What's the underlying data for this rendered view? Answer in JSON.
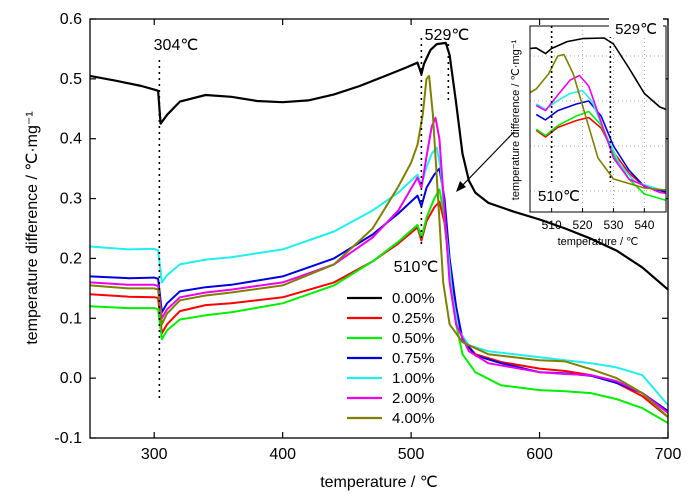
{
  "chart_data": {
    "type": "line",
    "xlabel": "temperature / ℃",
    "ylabel": "temperature difference / ℃·mg⁻¹",
    "xlim": [
      250,
      700
    ],
    "ylim": [
      -0.1,
      0.6
    ],
    "xticks": [
      "300",
      "400",
      "500",
      "600",
      "700"
    ],
    "yticks": [
      "-0.1",
      "0.0",
      "0.1",
      "0.2",
      "0.3",
      "0.4",
      "0.5",
      "0.6"
    ],
    "legend_position": "center",
    "annotations": [
      {
        "text": "304℃",
        "x": 304
      },
      {
        "text": "529℃",
        "x": 529
      },
      {
        "text": "510℃",
        "x": 510
      }
    ],
    "series": [
      {
        "name": "0.00%",
        "color": "#000000",
        "points": [
          [
            250,
            0.505
          ],
          [
            270,
            0.497
          ],
          [
            290,
            0.488
          ],
          [
            300,
            0.482
          ],
          [
            303,
            0.48
          ],
          [
            305,
            0.425
          ],
          [
            310,
            0.44
          ],
          [
            320,
            0.462
          ],
          [
            340,
            0.473
          ],
          [
            360,
            0.47
          ],
          [
            380,
            0.463
          ],
          [
            400,
            0.461
          ],
          [
            420,
            0.464
          ],
          [
            440,
            0.474
          ],
          [
            460,
            0.488
          ],
          [
            480,
            0.505
          ],
          [
            495,
            0.518
          ],
          [
            505,
            0.527
          ],
          [
            508,
            0.508
          ],
          [
            510,
            0.525
          ],
          [
            515,
            0.548
          ],
          [
            520,
            0.558
          ],
          [
            527,
            0.56
          ],
          [
            530,
            0.54
          ],
          [
            535,
            0.46
          ],
          [
            540,
            0.375
          ],
          [
            545,
            0.33
          ],
          [
            550,
            0.31
          ],
          [
            560,
            0.293
          ],
          [
            580,
            0.278
          ],
          [
            600,
            0.265
          ],
          [
            620,
            0.25
          ],
          [
            640,
            0.233
          ],
          [
            660,
            0.213
          ],
          [
            680,
            0.185
          ],
          [
            700,
            0.148
          ]
        ]
      },
      {
        "name": "0.25%",
        "color": "#ff0000",
        "points": [
          [
            250,
            0.14
          ],
          [
            280,
            0.136
          ],
          [
            300,
            0.135
          ],
          [
            303,
            0.134
          ],
          [
            306,
            0.075
          ],
          [
            310,
            0.09
          ],
          [
            320,
            0.112
          ],
          [
            340,
            0.122
          ],
          [
            360,
            0.125
          ],
          [
            400,
            0.135
          ],
          [
            440,
            0.16
          ],
          [
            470,
            0.195
          ],
          [
            490,
            0.225
          ],
          [
            505,
            0.252
          ],
          [
            508,
            0.23
          ],
          [
            512,
            0.262
          ],
          [
            518,
            0.285
          ],
          [
            522,
            0.295
          ],
          [
            526,
            0.26
          ],
          [
            530,
            0.18
          ],
          [
            535,
            0.11
          ],
          [
            540,
            0.065
          ],
          [
            550,
            0.04
          ],
          [
            570,
            0.027
          ],
          [
            600,
            0.016
          ],
          [
            620,
            0.012
          ],
          [
            640,
            0.005
          ],
          [
            660,
            -0.008
          ],
          [
            680,
            -0.03
          ],
          [
            700,
            -0.065
          ]
        ]
      },
      {
        "name": "0.50%",
        "color": "#00ee00",
        "points": [
          [
            250,
            0.12
          ],
          [
            280,
            0.117
          ],
          [
            300,
            0.117
          ],
          [
            303,
            0.115
          ],
          [
            306,
            0.065
          ],
          [
            310,
            0.08
          ],
          [
            320,
            0.098
          ],
          [
            340,
            0.105
          ],
          [
            360,
            0.11
          ],
          [
            400,
            0.125
          ],
          [
            440,
            0.155
          ],
          [
            470,
            0.195
          ],
          [
            490,
            0.228
          ],
          [
            505,
            0.256
          ],
          [
            508,
            0.235
          ],
          [
            512,
            0.268
          ],
          [
            518,
            0.3
          ],
          [
            522,
            0.315
          ],
          [
            526,
            0.27
          ],
          [
            530,
            0.17
          ],
          [
            535,
            0.09
          ],
          [
            540,
            0.04
          ],
          [
            550,
            0.01
          ],
          [
            570,
            -0.012
          ],
          [
            600,
            -0.02
          ],
          [
            620,
            -0.022
          ],
          [
            640,
            -0.025
          ],
          [
            660,
            -0.035
          ],
          [
            680,
            -0.05
          ],
          [
            700,
            -0.075
          ]
        ]
      },
      {
        "name": "0.75%",
        "color": "#0000dd",
        "points": [
          [
            250,
            0.17
          ],
          [
            280,
            0.167
          ],
          [
            300,
            0.168
          ],
          [
            303,
            0.166
          ],
          [
            306,
            0.11
          ],
          [
            310,
            0.125
          ],
          [
            320,
            0.145
          ],
          [
            340,
            0.152
          ],
          [
            360,
            0.156
          ],
          [
            400,
            0.17
          ],
          [
            440,
            0.2
          ],
          [
            470,
            0.24
          ],
          [
            490,
            0.275
          ],
          [
            505,
            0.305
          ],
          [
            508,
            0.287
          ],
          [
            512,
            0.318
          ],
          [
            518,
            0.34
          ],
          [
            522,
            0.35
          ],
          [
            526,
            0.3
          ],
          [
            530,
            0.2
          ],
          [
            535,
            0.12
          ],
          [
            540,
            0.065
          ],
          [
            550,
            0.038
          ],
          [
            570,
            0.025
          ],
          [
            600,
            0.01
          ],
          [
            620,
            0.008
          ],
          [
            640,
            0.004
          ],
          [
            660,
            -0.008
          ],
          [
            680,
            -0.025
          ],
          [
            700,
            -0.055
          ]
        ]
      },
      {
        "name": "1.00%",
        "color": "#22eeee",
        "points": [
          [
            250,
            0.22
          ],
          [
            280,
            0.215
          ],
          [
            300,
            0.216
          ],
          [
            303,
            0.213
          ],
          [
            306,
            0.16
          ],
          [
            310,
            0.172
          ],
          [
            320,
            0.19
          ],
          [
            340,
            0.198
          ],
          [
            360,
            0.202
          ],
          [
            400,
            0.215
          ],
          [
            440,
            0.245
          ],
          [
            470,
            0.28
          ],
          [
            490,
            0.31
          ],
          [
            505,
            0.34
          ],
          [
            508,
            0.322
          ],
          [
            512,
            0.352
          ],
          [
            516,
            0.375
          ],
          [
            520,
            0.385
          ],
          [
            523,
            0.35
          ],
          [
            527,
            0.25
          ],
          [
            532,
            0.14
          ],
          [
            537,
            0.08
          ],
          [
            545,
            0.055
          ],
          [
            560,
            0.045
          ],
          [
            600,
            0.035
          ],
          [
            620,
            0.03
          ],
          [
            640,
            0.025
          ],
          [
            660,
            0.018
          ],
          [
            680,
            0.005
          ],
          [
            700,
            -0.045
          ]
        ]
      },
      {
        "name": "2.00%",
        "color": "#ee00ee",
        "points": [
          [
            250,
            0.16
          ],
          [
            280,
            0.156
          ],
          [
            300,
            0.156
          ],
          [
            303,
            0.154
          ],
          [
            306,
            0.1
          ],
          [
            310,
            0.115
          ],
          [
            320,
            0.135
          ],
          [
            340,
            0.143
          ],
          [
            360,
            0.148
          ],
          [
            400,
            0.16
          ],
          [
            440,
            0.19
          ],
          [
            470,
            0.235
          ],
          [
            490,
            0.28
          ],
          [
            505,
            0.335
          ],
          [
            508,
            0.318
          ],
          [
            512,
            0.37
          ],
          [
            516,
            0.42
          ],
          [
            519,
            0.435
          ],
          [
            522,
            0.4
          ],
          [
            526,
            0.28
          ],
          [
            530,
            0.16
          ],
          [
            535,
            0.09
          ],
          [
            545,
            0.045
          ],
          [
            560,
            0.025
          ],
          [
            600,
            0.01
          ],
          [
            620,
            0.007
          ],
          [
            640,
            0.005
          ],
          [
            660,
            -0.005
          ],
          [
            680,
            -0.025
          ],
          [
            700,
            -0.058
          ]
        ]
      },
      {
        "name": "4.00%",
        "color": "#808000",
        "points": [
          [
            250,
            0.155
          ],
          [
            280,
            0.15
          ],
          [
            300,
            0.15
          ],
          [
            303,
            0.148
          ],
          [
            306,
            0.09
          ],
          [
            310,
            0.108
          ],
          [
            320,
            0.13
          ],
          [
            340,
            0.138
          ],
          [
            360,
            0.143
          ],
          [
            400,
            0.155
          ],
          [
            440,
            0.19
          ],
          [
            470,
            0.25
          ],
          [
            490,
            0.32
          ],
          [
            500,
            0.36
          ],
          [
            505,
            0.39
          ],
          [
            509,
            0.44
          ],
          [
            512,
            0.5
          ],
          [
            514,
            0.505
          ],
          [
            517,
            0.44
          ],
          [
            521,
            0.3
          ],
          [
            525,
            0.16
          ],
          [
            530,
            0.09
          ],
          [
            540,
            0.06
          ],
          [
            560,
            0.04
          ],
          [
            600,
            0.03
          ],
          [
            620,
            0.028
          ],
          [
            640,
            0.015
          ],
          [
            660,
            0.0
          ],
          [
            680,
            -0.025
          ],
          [
            700,
            -0.065
          ]
        ]
      }
    ],
    "inset": {
      "xlabel": "temperature / ℃",
      "ylabel": "temperature difference / ℃·mg⁻¹",
      "xlim": [
        503,
        547
      ],
      "xticks": [
        "510",
        "520",
        "530",
        "540"
      ],
      "annotations": [
        {
          "text": "510℃",
          "x": 510
        },
        {
          "text": "529℃",
          "x": 529
        }
      ]
    }
  }
}
